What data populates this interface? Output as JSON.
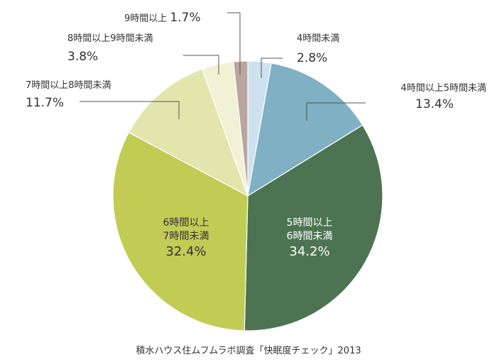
{
  "chart_data": {
    "type": "pie",
    "source": "積水ハウス住ムフムラボ調査「快眠度チェック」2013",
    "slices": [
      {
        "label": "4時間未満",
        "value": 2.8,
        "display": "2.8%",
        "color": "#cde1ee"
      },
      {
        "label": "4時間以上5時間未満",
        "value": 13.4,
        "display": "13.4%",
        "color": "#7fb0c4"
      },
      {
        "label": "5時間以上6時間未満",
        "label_lines": [
          "5時間以上",
          "6時間未満"
        ],
        "value": 34.2,
        "display": "34.2%",
        "color": "#4d7452"
      },
      {
        "label": "6時間以上7時間未満",
        "label_lines": [
          "6時間以上",
          "7時間未満"
        ],
        "value": 32.4,
        "display": "32.4%",
        "color": "#c2cc55"
      },
      {
        "label": "7時間以上8時間未満",
        "value": 11.7,
        "display": "11.7%",
        "color": "#e2e6ad"
      },
      {
        "label": "8時間以上9時間未満",
        "value": 3.8,
        "display": "3.8%",
        "color": "#f1f2d5"
      },
      {
        "label": "9時間以上",
        "value": 1.7,
        "display": "1.7%",
        "color": "#bba5a0"
      }
    ]
  }
}
